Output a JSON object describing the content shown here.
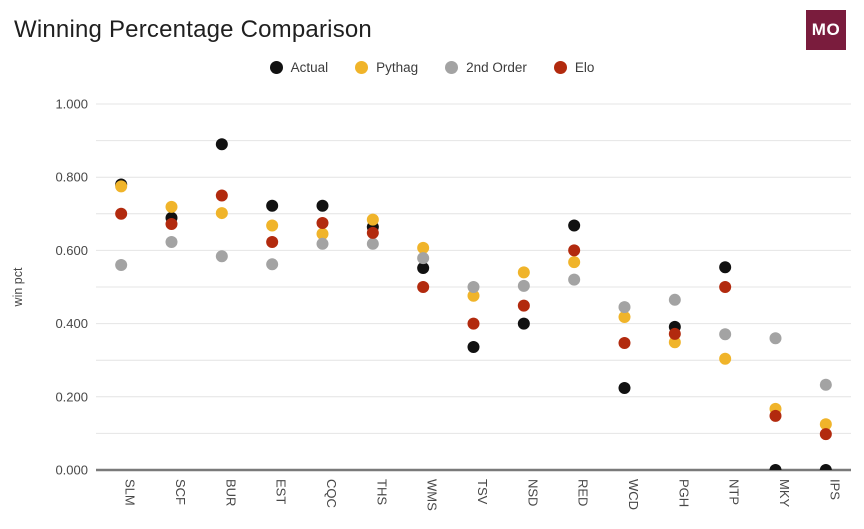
{
  "header": {
    "title": "Winning Percentage Comparison",
    "logo_text": "MO"
  },
  "colors": {
    "background": "#ffffff",
    "gridline": "#e4e4e4",
    "axis_line": "#7a7a7a",
    "logo_background": "#7a1c3d",
    "title_text": "#1f1f1f",
    "tick_text": "#484848"
  },
  "chart_data": {
    "type": "scatter",
    "title": "Winning Percentage Comparison",
    "xlabel": "",
    "ylabel": "win pct",
    "ylim": [
      0,
      1
    ],
    "ytick_labels": [
      "0.000",
      "0.200",
      "0.400",
      "0.600",
      "0.800",
      "1.000"
    ],
    "ytick_values": [
      0,
      0.2,
      0.4,
      0.6,
      0.8,
      1.0
    ],
    "minor_grid_values": [
      0.1,
      0.3,
      0.5,
      0.7,
      0.9
    ],
    "grid": true,
    "legend_position": "top",
    "categories": [
      "SLM",
      "SCF",
      "BUR",
      "EST",
      "CQC",
      "THS",
      "WMS",
      "TSV",
      "NSD",
      "RED",
      "WCD",
      "PGH",
      "NTP",
      "MKY",
      "IPS"
    ],
    "series": [
      {
        "name": "Actual",
        "color": "#111111",
        "values": [
          0.78,
          0.689,
          0.89,
          0.722,
          0.722,
          0.664,
          0.552,
          0.336,
          0.4,
          0.668,
          0.224,
          0.391,
          0.554,
          0.0,
          0.0
        ]
      },
      {
        "name": "Pythag",
        "color": "#f0b42a",
        "values": [
          0.775,
          0.719,
          0.702,
          0.668,
          0.645,
          0.684,
          0.607,
          0.476,
          0.54,
          0.568,
          0.418,
          0.349,
          0.304,
          0.167,
          0.125
        ]
      },
      {
        "name": "2nd Order",
        "color": "#a3a3a3",
        "values": [
          0.56,
          0.623,
          0.584,
          0.562,
          0.618,
          0.618,
          0.579,
          0.5,
          0.503,
          0.52,
          0.445,
          0.465,
          0.371,
          0.36,
          0.233
        ]
      },
      {
        "name": "Elo",
        "color": "#b22a0e",
        "values": [
          0.7,
          0.672,
          0.75,
          0.623,
          0.675,
          0.648,
          0.5,
          0.4,
          0.449,
          0.6,
          0.347,
          0.372,
          0.5,
          0.148,
          0.098
        ]
      }
    ]
  }
}
